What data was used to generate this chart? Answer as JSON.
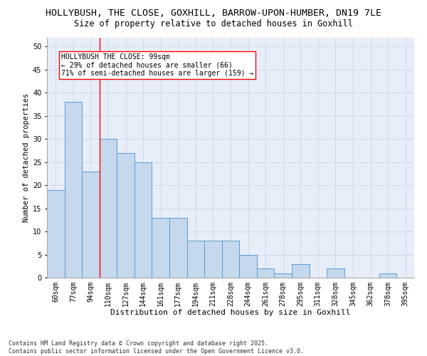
{
  "title1": "HOLLYBUSH, THE CLOSE, GOXHILL, BARROW-UPON-HUMBER, DN19 7LE",
  "title2": "Size of property relative to detached houses in Goxhill",
  "xlabel": "Distribution of detached houses by size in Goxhill",
  "ylabel": "Number of detached properties",
  "categories": [
    "60sqm",
    "77sqm",
    "94sqm",
    "110sqm",
    "127sqm",
    "144sqm",
    "161sqm",
    "177sqm",
    "194sqm",
    "211sqm",
    "228sqm",
    "244sqm",
    "261sqm",
    "278sqm",
    "295sqm",
    "311sqm",
    "328sqm",
    "345sqm",
    "362sqm",
    "378sqm",
    "395sqm"
  ],
  "values": [
    19,
    38,
    23,
    30,
    27,
    25,
    13,
    13,
    8,
    8,
    8,
    5,
    2,
    1,
    3,
    0,
    2,
    0,
    0,
    1,
    0
  ],
  "bar_color": "#c5d8ed",
  "bar_edge_color": "#5b9bd5",
  "grid_color": "#d0d8e8",
  "background_color": "#e8eef8",
  "annotation_line1": "HOLLYBUSH THE CLOSE: 99sqm",
  "annotation_line2": "← 29% of detached houses are smaller (66)",
  "annotation_line3": "71% of semi-detached houses are larger (159) →",
  "vline_x_idx": 2.5,
  "ylim": [
    0,
    52
  ],
  "yticks": [
    0,
    5,
    10,
    15,
    20,
    25,
    30,
    35,
    40,
    45,
    50
  ],
  "footer": "Contains HM Land Registry data © Crown copyright and database right 2025.\nContains public sector information licensed under the Open Government Licence v3.0.",
  "title_fontsize": 9.5,
  "subtitle_fontsize": 8.5,
  "tick_fontsize": 7,
  "xlabel_fontsize": 8,
  "ylabel_fontsize": 7.5,
  "annotation_fontsize": 7,
  "footer_fontsize": 6
}
